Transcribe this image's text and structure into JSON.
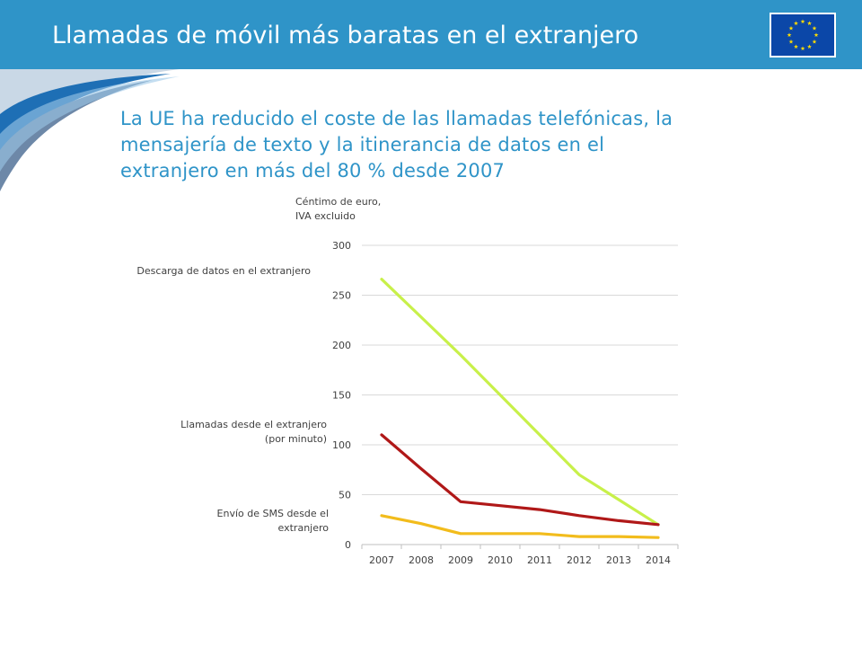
{
  "header": {
    "title": "Llamadas de móvil más baratas en el extranjero",
    "flag_icon": "eu-flag-icon"
  },
  "subtitle": [
    "La UE ha reducido el coste de las llamadas telefónicas, la",
    "mensajería de texto y la itinerancia de datos en el",
    "extranjero en más del 80 % desde 2007"
  ],
  "colors": {
    "brand_blue": "#2f94c8",
    "series_data": "#c8f04a",
    "series_calls": "#b01818",
    "series_sms": "#f2bc1c"
  },
  "chart_data": {
    "type": "line",
    "ylabel": [
      "Céntimo de euro,",
      "IVA excluido"
    ],
    "x": [
      "2007",
      "2008",
      "2009",
      "2010",
      "2011",
      "2012",
      "2013",
      "2014"
    ],
    "ylim": [
      0,
      300
    ],
    "yticks": [
      "0",
      "50",
      "100",
      "150",
      "200",
      "250",
      "300"
    ],
    "grid": true,
    "series": [
      {
        "name": "Descarga de datos en el extranjero",
        "label_lines": [
          "Descarga de datos en el extranjero"
        ],
        "color": "#c8f04a",
        "values": [
          266,
          228,
          190,
          150,
          110,
          70,
          45,
          20
        ]
      },
      {
        "name": "Llamadas desde el extranjero (por minuto)",
        "label_lines": [
          "Llamadas desde el extranjero",
          "(por minuto)"
        ],
        "color": "#b01818",
        "values": [
          110,
          76,
          43,
          39,
          35,
          29,
          24,
          20
        ]
      },
      {
        "name": "Envío de SMS desde el extranjero",
        "label_lines": [
          "Envío de SMS desde el",
          "extranjero"
        ],
        "color": "#f2bc1c",
        "values": [
          29,
          21,
          11,
          11,
          11,
          8,
          8,
          7
        ]
      }
    ]
  }
}
